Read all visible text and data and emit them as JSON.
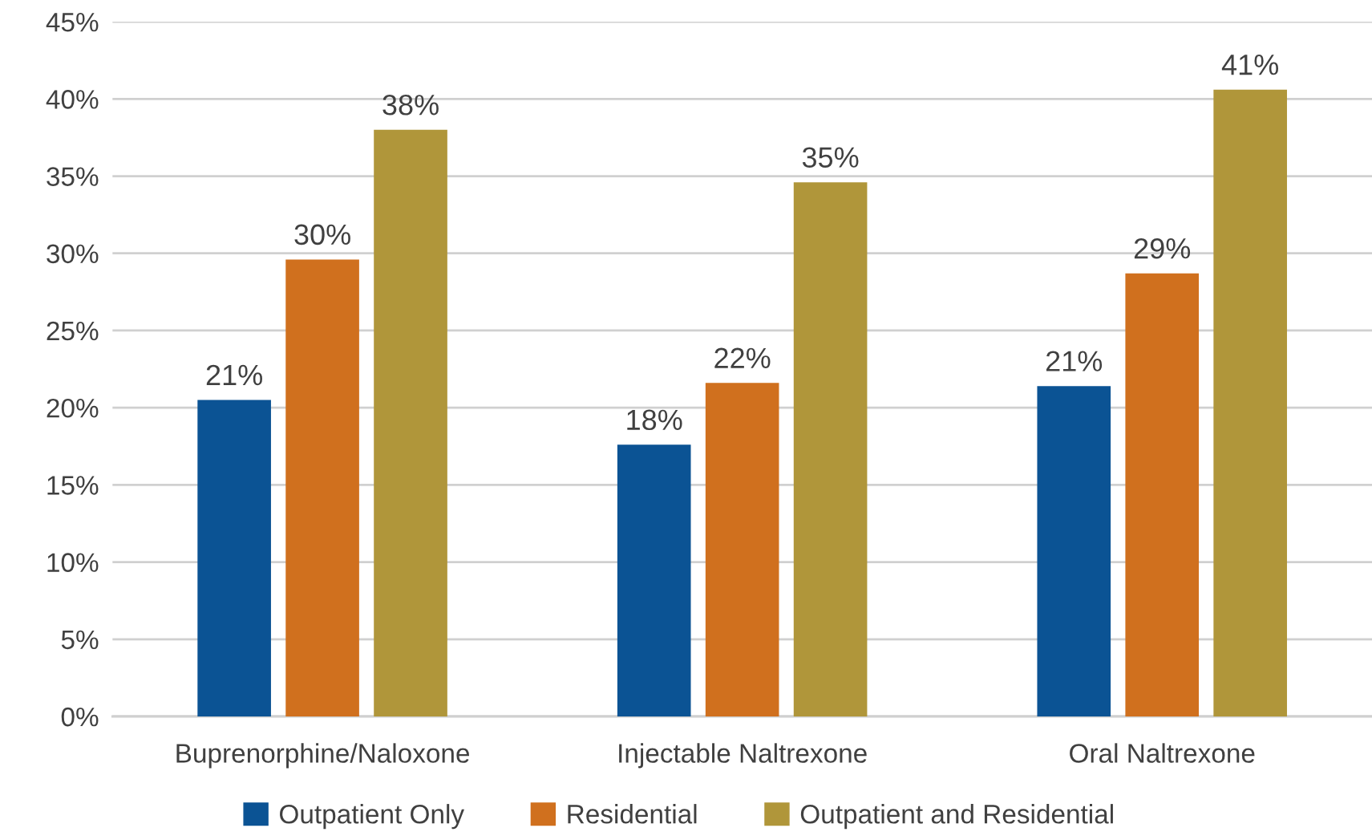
{
  "chart_data": {
    "type": "bar",
    "categories": [
      "Buprenorphine/Naloxone",
      "Injectable Naltrexone",
      "Oral Naltrexone"
    ],
    "series": [
      {
        "name": "Outpatient Only",
        "color": "#0b5394",
        "values": [
          20.5,
          17.6,
          21.4
        ],
        "value_labels": [
          "21%",
          "18%",
          "21%"
        ]
      },
      {
        "name": "Residential",
        "color": "#d0701e",
        "values": [
          29.6,
          21.6,
          28.7
        ],
        "value_labels": [
          "30%",
          "22%",
          "29%"
        ]
      },
      {
        "name": "Outpatient and Residential",
        "color": "#b0963a",
        "values": [
          38.0,
          34.6,
          40.6
        ],
        "value_labels": [
          "38%",
          "35%",
          "41%"
        ]
      }
    ],
    "ylim": [
      0,
      45
    ],
    "yticks": [
      {
        "value": 0,
        "label": "0%"
      },
      {
        "value": 5,
        "label": "5%"
      },
      {
        "value": 10,
        "label": "10%"
      },
      {
        "value": 15,
        "label": "15%"
      },
      {
        "value": 20,
        "label": "20%"
      },
      {
        "value": 25,
        "label": "25%"
      },
      {
        "value": 30,
        "label": "30%"
      },
      {
        "value": 35,
        "label": "35%"
      },
      {
        "value": 40,
        "label": "40%"
      },
      {
        "value": 45,
        "label": "45%"
      }
    ],
    "grid": "y",
    "legend": "bottom"
  }
}
